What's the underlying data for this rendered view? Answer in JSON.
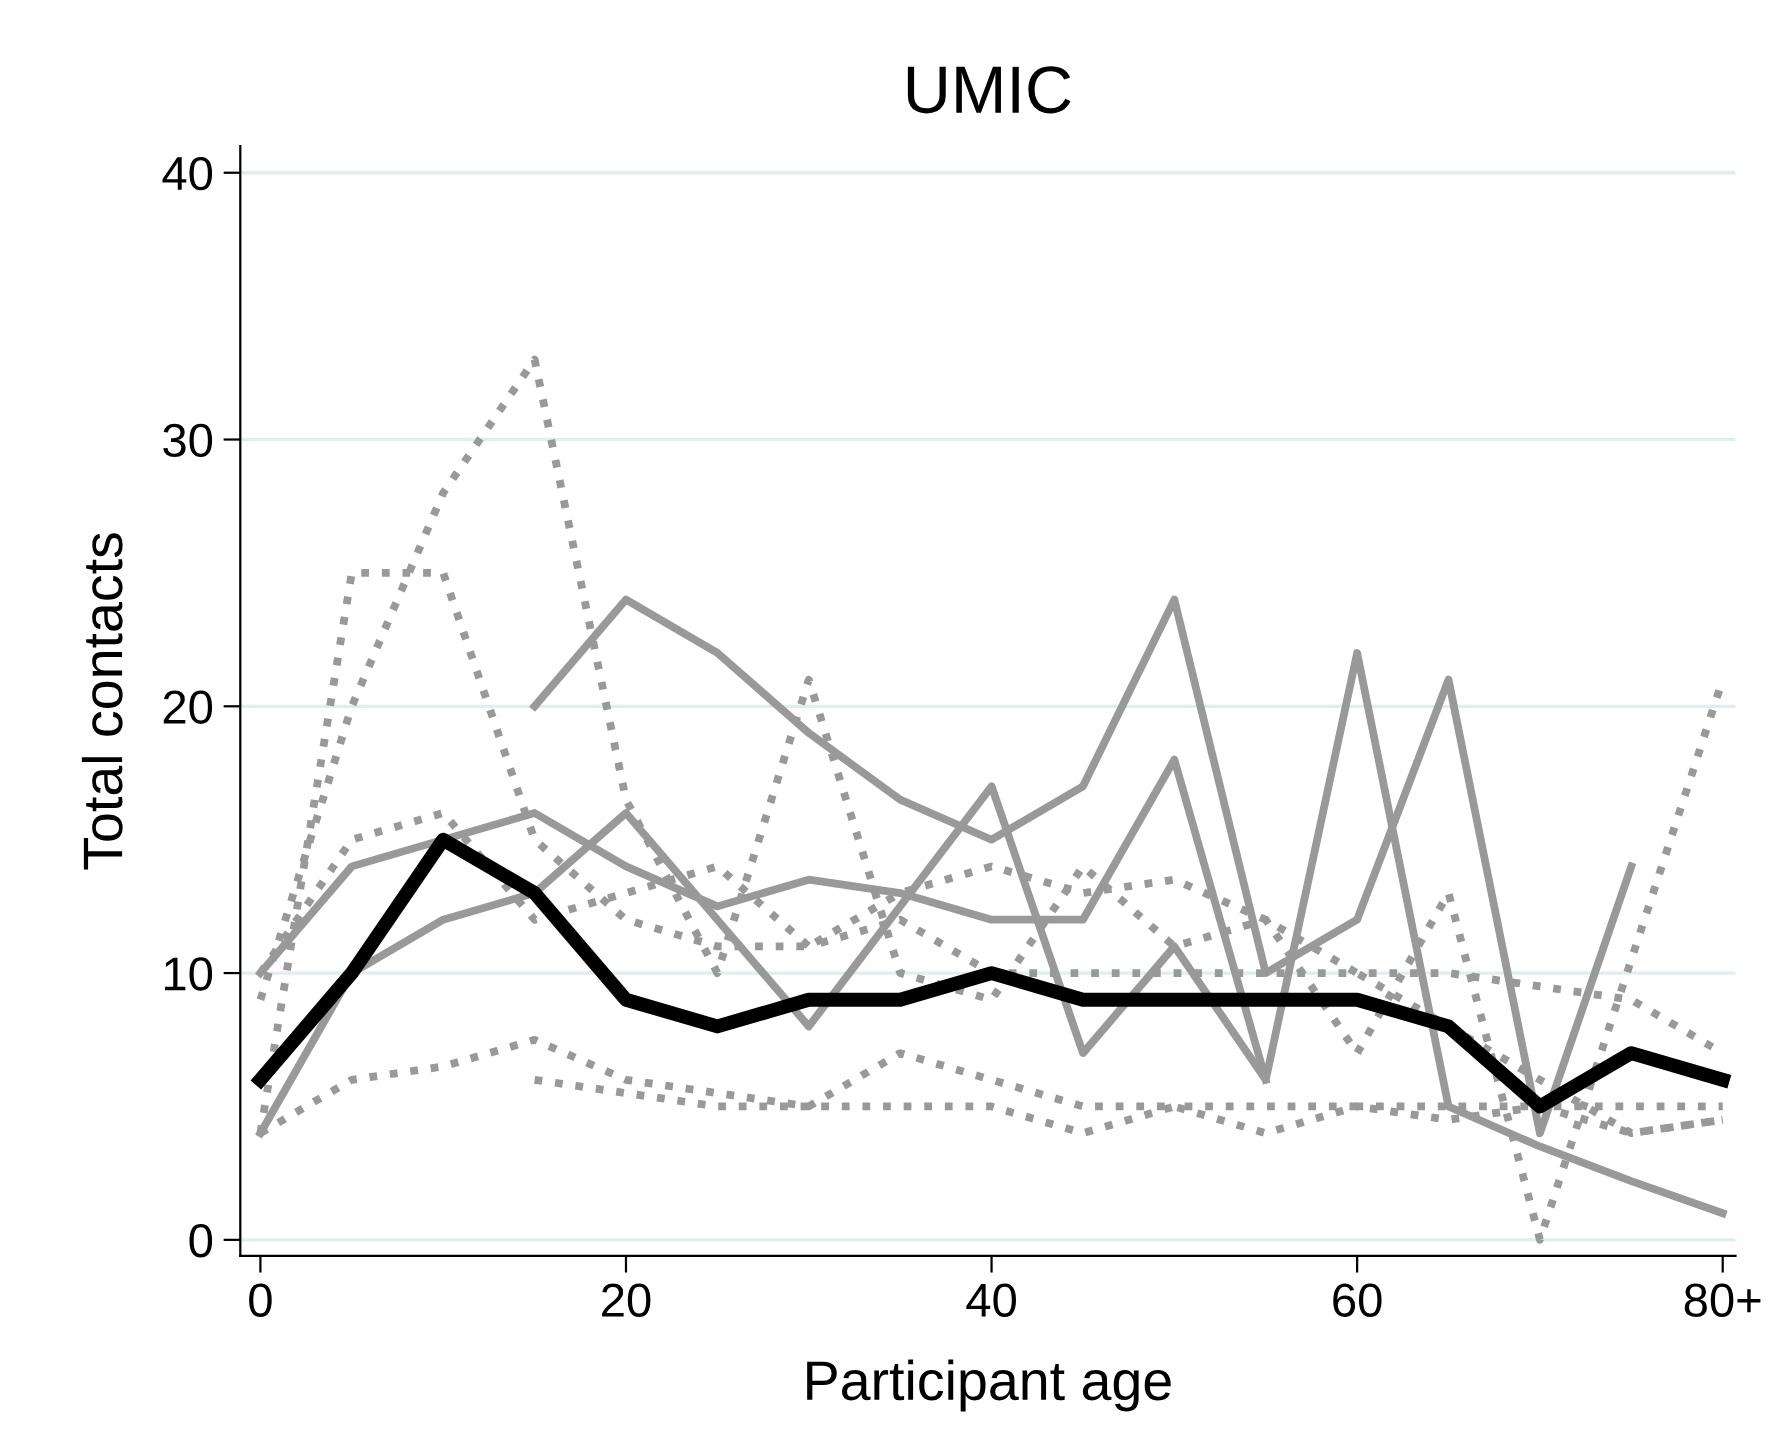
{
  "chart_data": {
    "type": "line",
    "title": "UMIC",
    "xlabel": "Participant age",
    "ylabel": "Total contacts",
    "xlim": [
      -1.1,
      80.7
    ],
    "ylim": [
      -0.6,
      41
    ],
    "xticks": [
      0,
      20,
      40,
      {
        "value": 80,
        "label": "80+"
      },
      60
    ],
    "yticks": [
      0,
      10,
      20,
      30,
      40
    ],
    "grid": "y",
    "marker": "none",
    "series": [
      {
        "color": "#999999",
        "line_style": "dotted",
        "x": [
          0,
          5,
          10,
          15,
          20,
          25,
          30,
          35,
          40,
          45,
          50,
          55,
          60,
          65,
          70,
          75,
          80
        ],
        "values": [
          9,
          20,
          28,
          33,
          16.5,
          10,
          21,
          10,
          9,
          14,
          11,
          12,
          7,
          13,
          0,
          10.5,
          21
        ]
      },
      {
        "color": "#999999",
        "line_style": "dotted",
        "x": [
          0,
          5,
          10,
          15,
          20,
          25,
          30,
          35,
          40,
          45,
          50,
          55,
          60,
          65,
          70,
          75,
          80
        ],
        "values": [
          4,
          25,
          25,
          15,
          12,
          11,
          11,
          13,
          14,
          13,
          13.5,
          12,
          10,
          10,
          9.5,
          9,
          7
        ]
      },
      {
        "color": "#999999",
        "line_style": "dotted",
        "x": [
          0,
          5,
          10,
          15,
          20,
          25,
          30,
          35,
          40,
          45,
          50,
          55,
          60,
          65,
          70,
          75,
          80
        ],
        "values": [
          10,
          15,
          16,
          12,
          13,
          14,
          11,
          12,
          10,
          10,
          10,
          10,
          10,
          8,
          6,
          4,
          4.5
        ]
      },
      {
        "color": "#999999",
        "line_style": "dotted",
        "x": [
          0,
          5,
          10,
          15,
          20,
          25,
          30,
          35,
          40,
          45,
          50,
          55,
          60,
          65,
          70,
          75,
          80
        ],
        "values": [
          4,
          6,
          6.5,
          7.5,
          6,
          5.5,
          5,
          7,
          6,
          5,
          5,
          4,
          5,
          5,
          5,
          4,
          4.5
        ]
      },
      {
        "color": "#999999",
        "line_style": "dotted",
        "x": [
          15,
          20,
          25,
          30,
          35,
          40,
          45,
          50,
          55,
          60,
          65,
          70,
          75,
          80
        ],
        "values": [
          6,
          5.5,
          5,
          5,
          5,
          5,
          4,
          5,
          5,
          5,
          4.5,
          5,
          5,
          5
        ]
      },
      {
        "color": "#999999",
        "line_style": "solid",
        "x": [
          15,
          20,
          25,
          30,
          35,
          40,
          45,
          50,
          55,
          60,
          65,
          70,
          75
        ],
        "values": [
          20,
          24,
          22,
          19,
          16.5,
          15,
          17,
          24,
          10,
          12,
          21,
          4,
          14
        ]
      },
      {
        "color": "#999999",
        "line_style": "solid",
        "x": [
          0,
          5,
          10,
          15,
          20,
          25,
          30,
          35,
          40,
          45,
          50,
          55,
          60,
          65,
          70,
          75,
          80
        ],
        "values": [
          4,
          10,
          12,
          13,
          16,
          12,
          8,
          12.5,
          17,
          7,
          11,
          6,
          22,
          5,
          3.5,
          2.2,
          1
        ]
      },
      {
        "color": "#999999",
        "line_style": "solid",
        "x": [
          0,
          5,
          15,
          20,
          25,
          30,
          35,
          40,
          45,
          50,
          55
        ],
        "values": [
          10,
          14,
          16,
          14,
          12.5,
          13.5,
          13,
          12,
          12,
          18,
          6
        ]
      },
      {
        "color": "#000000",
        "line_style": "solid",
        "x": [
          0,
          5,
          10,
          15,
          20,
          25,
          30,
          35,
          40,
          45,
          50,
          55,
          60,
          65,
          70,
          75,
          80
        ],
        "values": [
          6,
          10,
          15,
          13,
          9,
          8,
          9,
          9,
          10,
          9,
          9,
          9,
          9,
          8,
          5,
          7,
          6
        ]
      }
    ]
  }
}
